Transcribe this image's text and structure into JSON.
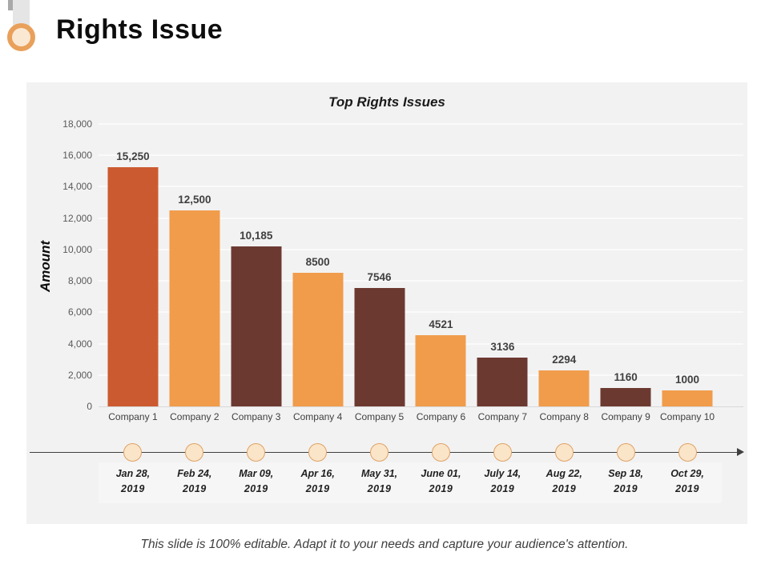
{
  "header": {
    "title": "Rights Issue"
  },
  "chart_data": {
    "type": "bar",
    "title": "Top Rights Issues",
    "xlabel": "",
    "ylabel": "Amount",
    "categories": [
      "Company 1",
      "Company 2",
      "Company 3",
      "Company 4",
      "Company 5",
      "Company 6",
      "Company 7",
      "Company 8",
      "Company 9",
      "Company 10"
    ],
    "values": [
      15250,
      12500,
      10185,
      8500,
      7546,
      4521,
      3136,
      2294,
      1160,
      1000
    ],
    "value_labels": [
      "15,250",
      "12,500",
      "10,185",
      "8500",
      "7546",
      "4521",
      "3136",
      "2294",
      "1160",
      "1000"
    ],
    "bar_colors": [
      "#cc5a30",
      "#f19c4b",
      "#6c3931",
      "#f19c4b",
      "#6c3931",
      "#f19c4b",
      "#6c3931",
      "#f19c4b",
      "#6c3931",
      "#f19c4b"
    ],
    "ylim": [
      0,
      18000
    ],
    "y_ticks": [
      0,
      2000,
      4000,
      6000,
      8000,
      10000,
      12000,
      14000,
      16000,
      18000
    ],
    "y_tick_labels": [
      "0",
      "2,000",
      "4,000",
      "6,000",
      "8,000",
      "10,000",
      "12,000",
      "14,000",
      "16,000",
      "18,000"
    ],
    "grid": "horizontal",
    "legend": "none"
  },
  "timeline": {
    "dates": [
      {
        "line1": "Jan 28,",
        "line2": "2019"
      },
      {
        "line1": "Feb 24,",
        "line2": "2019"
      },
      {
        "line1": "Mar 09,",
        "line2": "2019"
      },
      {
        "line1": "Apr 16,",
        "line2": "2019"
      },
      {
        "line1": "May 31,",
        "line2": "2019"
      },
      {
        "line1": "June 01,",
        "line2": "2019"
      },
      {
        "line1": "July 14,",
        "line2": "2019"
      },
      {
        "line1": "Aug 22,",
        "line2": "2019"
      },
      {
        "line1": "Sep 18,",
        "line2": "2019"
      },
      {
        "line1": "Oct 29,",
        "line2": "2019"
      }
    ]
  },
  "footer": {
    "text": "This slide is 100% editable. Adapt it to your needs and capture your audience's attention."
  },
  "colors": {
    "panel_bg": "#f2f2f2",
    "accent_orange": "#f19c4b",
    "accent_terracotta": "#cc5a30",
    "accent_brown": "#6c3931",
    "ring_border": "#e9a05b",
    "ring_fill": "#fae8d3",
    "node_fill": "#fbe5c9",
    "node_border": "#dfa265",
    "timeline_line": "#404040"
  }
}
